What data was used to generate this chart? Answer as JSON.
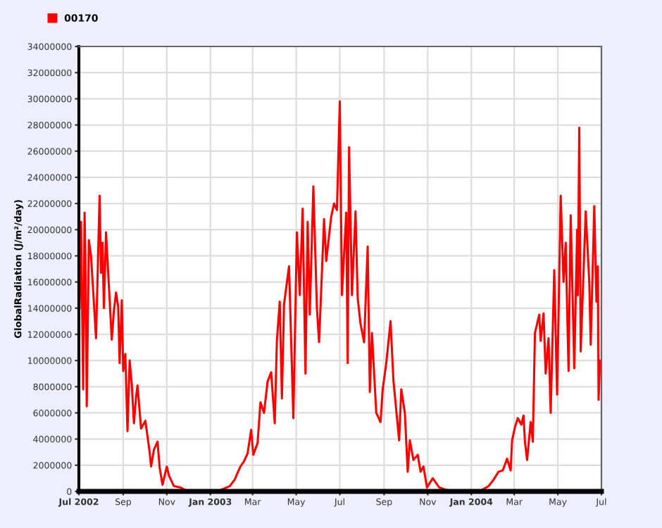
{
  "chart_data": {
    "type": "line",
    "ylabel": "GlobalRadiation (J/m²/day)",
    "legend": "top left",
    "grid": true,
    "marker": "none",
    "line_style": "solid",
    "xlim": [
      "2002-07-01",
      "2004-07-01"
    ],
    "xticks": [
      {
        "value": "2002-07-01",
        "label": "Jul 2002"
      },
      {
        "value": "2002-09-01",
        "label": "Sep"
      },
      {
        "value": "2002-11-01",
        "label": "Nov"
      },
      {
        "value": "2003-01-01",
        "label": "Jan 2003"
      },
      {
        "value": "2003-03-01",
        "label": "Mar"
      },
      {
        "value": "2003-05-01",
        "label": "May"
      },
      {
        "value": "2003-07-01",
        "label": "Jul"
      },
      {
        "value": "2003-09-01",
        "label": "Sep"
      },
      {
        "value": "2003-11-01",
        "label": "Nov"
      },
      {
        "value": "2004-01-01",
        "label": "Jan 2004"
      },
      {
        "value": "2004-03-01",
        "label": "Mar"
      },
      {
        "value": "2004-05-01",
        "label": "May"
      },
      {
        "value": "2004-07-01",
        "label": "Jul"
      }
    ],
    "ylim": [
      0,
      34000000
    ],
    "yticks": [
      0,
      2000000,
      4000000,
      6000000,
      8000000,
      10000000,
      12000000,
      14000000,
      16000000,
      18000000,
      20000000,
      22000000,
      24000000,
      26000000,
      28000000,
      30000000,
      32000000,
      34000000
    ],
    "series": [
      {
        "name": "00170",
        "color": "#ff0000",
        "x": [
          "2002-07-02",
          "2002-07-04",
          "2002-07-07",
          "2002-07-09",
          "2002-07-10",
          "2002-07-12",
          "2002-07-15",
          "2002-07-18",
          "2002-07-25",
          "2002-07-30",
          "2002-08-01",
          "2002-08-03",
          "2002-08-05",
          "2002-08-08",
          "2002-08-16",
          "2002-08-19",
          "2002-08-22",
          "2002-08-25",
          "2002-08-27",
          "2002-08-30",
          "2002-09-01",
          "2002-09-04",
          "2002-09-07",
          "2002-09-10",
          "2002-09-13",
          "2002-09-16",
          "2002-09-19",
          "2002-09-21",
          "2002-09-26",
          "2002-10-02",
          "2002-10-08",
          "2002-10-10",
          "2002-10-14",
          "2002-10-19",
          "2002-10-22",
          "2002-10-26",
          "2002-11-01",
          "2002-11-04",
          "2002-11-11",
          "2002-11-20",
          "2002-11-30",
          "2002-12-13",
          "2003-01-02",
          "2003-01-15",
          "2003-01-28",
          "2003-02-04",
          "2003-02-07",
          "2003-02-12",
          "2003-02-17",
          "2003-02-22",
          "2003-02-27",
          "2003-03-02",
          "2003-03-08",
          "2003-03-12",
          "2003-03-17",
          "2003-03-22",
          "2003-03-27",
          "2003-04-01",
          "2003-04-04",
          "2003-04-08",
          "2003-04-11",
          "2003-04-14",
          "2003-04-21",
          "2003-04-27",
          "2003-05-02",
          "2003-05-06",
          "2003-05-10",
          "2003-05-14",
          "2003-05-17",
          "2003-05-20",
          "2003-05-25",
          "2003-05-30",
          "2003-06-02",
          "2003-06-09",
          "2003-06-12",
          "2003-06-19",
          "2003-06-23",
          "2003-06-27",
          "2003-07-01",
          "2003-07-04",
          "2003-07-10",
          "2003-07-12",
          "2003-07-14",
          "2003-07-18",
          "2003-07-23",
          "2003-07-26",
          "2003-07-30",
          "2003-08-04",
          "2003-08-09",
          "2003-08-12",
          "2003-08-15",
          "2003-08-21",
          "2003-08-27",
          "2003-08-30",
          "2003-09-04",
          "2003-09-10",
          "2003-09-14",
          "2003-09-19",
          "2003-09-22",
          "2003-09-25",
          "2003-09-30",
          "2003-10-04",
          "2003-10-07",
          "2003-10-12",
          "2003-10-18",
          "2003-10-22",
          "2003-10-26",
          "2003-10-31",
          "2003-11-08",
          "2003-11-17",
          "2003-12-03",
          "2003-12-23",
          "2004-01-12",
          "2004-01-25",
          "2004-01-31",
          "2004-02-08",
          "2004-02-14",
          "2004-02-20",
          "2004-02-25",
          "2004-02-27",
          "2004-03-02",
          "2004-03-06",
          "2004-03-11",
          "2004-03-14",
          "2004-03-16",
          "2004-03-19",
          "2004-03-24",
          "2004-03-27",
          "2004-03-30",
          "2004-04-05",
          "2004-04-07",
          "2004-04-11",
          "2004-04-14",
          "2004-04-18",
          "2004-04-21",
          "2004-04-26",
          "2004-04-30",
          "2004-05-05",
          "2004-05-09",
          "2004-05-12",
          "2004-05-16",
          "2004-05-19",
          "2004-05-24",
          "2004-05-28",
          "2004-05-29",
          "2004-05-31",
          "2004-06-02",
          "2004-06-09",
          "2004-06-14",
          "2004-06-16",
          "2004-06-21",
          "2004-06-24",
          "2004-06-26",
          "2004-06-27",
          "2004-06-29"
        ],
        "values": [
          14000000,
          20600000,
          7800000,
          21300000,
          18000000,
          6500000,
          19200000,
          18000000,
          11700000,
          22600000,
          16700000,
          19000000,
          14000000,
          19800000,
          11600000,
          13800000,
          15200000,
          14100000,
          9800000,
          14600000,
          9200000,
          10500000,
          4600000,
          10000000,
          8200000,
          5200000,
          7200000,
          8100000,
          4800000,
          5400000,
          3000000,
          1900000,
          3200000,
          3800000,
          1800000,
          500000,
          1900000,
          1200000,
          400000,
          300000,
          0,
          0,
          0,
          100000,
          400000,
          900000,
          1300000,
          1900000,
          2300000,
          2900000,
          4700000,
          2800000,
          3700000,
          6800000,
          6000000,
          8400000,
          9100000,
          5200000,
          11500000,
          14500000,
          7100000,
          14300000,
          17200000,
          5600000,
          19800000,
          15000000,
          21600000,
          9000000,
          20600000,
          13500000,
          23300000,
          14000000,
          11400000,
          20800000,
          17600000,
          21000000,
          22000000,
          21500000,
          29800000,
          15000000,
          21300000,
          9800000,
          26300000,
          15000000,
          21400000,
          14800000,
          12800000,
          11400000,
          18700000,
          7600000,
          12100000,
          6000000,
          5300000,
          7800000,
          9800000,
          13000000,
          8500000,
          5600000,
          3900000,
          7800000,
          6000000,
          1500000,
          3900000,
          2400000,
          2800000,
          1500000,
          1900000,
          300000,
          1000000,
          300000,
          0,
          0,
          0,
          400000,
          800000,
          1500000,
          1600000,
          2500000,
          1600000,
          3900000,
          4900000,
          5600000,
          5100000,
          5800000,
          3800000,
          2400000,
          5300000,
          3800000,
          12100000,
          13500000,
          11500000,
          13600000,
          9000000,
          11700000,
          6000000,
          16900000,
          7400000,
          22600000,
          16000000,
          19000000,
          9200000,
          21100000,
          9400000,
          20000000,
          15000000,
          27800000,
          10700000,
          21400000,
          16000000,
          11200000,
          21800000,
          14500000,
          17200000,
          7000000,
          10000000
        ]
      }
    ]
  }
}
